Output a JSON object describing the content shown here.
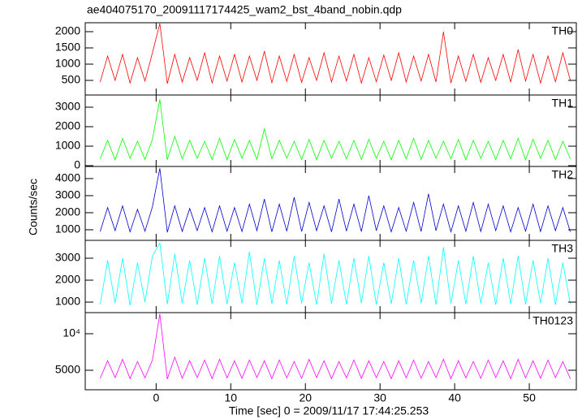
{
  "chart_data": {
    "type": "line",
    "title": "ae404075170_20091117174425_wam2_bst_4band_nobin.qdp",
    "xlabel": "Time [sec] 0 = 2009/11/17 17:44:25.253",
    "ylabel": "Counts/sec",
    "xlim": [
      -9.5,
      56.3
    ],
    "xticks": [
      0,
      10,
      20,
      30,
      40,
      50
    ],
    "x": [
      -7.5,
      -6.5,
      -5.5,
      -4.5,
      -3.5,
      -2.5,
      -1.5,
      -0.5,
      0.5,
      1.5,
      2.5,
      3.5,
      4.5,
      5.5,
      6.5,
      7.5,
      8.5,
      9.5,
      10.5,
      11.5,
      12.5,
      13.5,
      14.5,
      15.5,
      16.5,
      17.5,
      18.5,
      19.5,
      20.5,
      21.5,
      22.5,
      23.5,
      24.5,
      25.5,
      26.5,
      27.5,
      28.5,
      29.5,
      30.5,
      31.5,
      32.5,
      33.5,
      34.5,
      35.5,
      36.5,
      37.5,
      38.5,
      39.5,
      40.5,
      41.5,
      42.5,
      43.5,
      44.5,
      45.5,
      46.5,
      47.5,
      48.5,
      49.5,
      50.5,
      51.5,
      52.5,
      53.5,
      54.5,
      55.5
    ],
    "series": [
      {
        "name": "TH0",
        "color": "#ff0000",
        "ylim": [
          50,
          2275
        ],
        "yticks": [
          500,
          1000,
          1500,
          2000
        ],
        "values": [
          450,
          1250,
          500,
          1300,
          420,
          1200,
          480,
          1350,
          2250,
          400,
          1300,
          450,
          1200,
          500,
          1350,
          420,
          1250,
          480,
          1300,
          450,
          1250,
          500,
          1400,
          430,
          1250,
          470,
          1300,
          440,
          1200,
          500,
          1350,
          450,
          1250,
          480,
          1300,
          420,
          1200,
          460,
          1280,
          500,
          1350,
          450,
          1250,
          480,
          1300,
          450,
          2000,
          420,
          1250,
          470,
          1300,
          440,
          1200,
          500,
          1300,
          450,
          1450,
          480,
          1300,
          420,
          1250,
          460,
          1350,
          500
        ]
      },
      {
        "name": "TH1",
        "color": "#00ff00",
        "ylim": [
          -40,
          3625
        ],
        "yticks": [
          0,
          1000,
          2000,
          3000
        ],
        "values": [
          350,
          1300,
          300,
          1400,
          380,
          1250,
          320,
          1350,
          3400,
          300,
          1500,
          350,
          1300,
          380,
          1250,
          320,
          1400,
          300,
          1350,
          380,
          1300,
          320,
          1900,
          350,
          1300,
          380,
          1250,
          320,
          1350,
          300,
          1300,
          380,
          1250,
          350,
          1300,
          320,
          1350,
          380,
          1250,
          300,
          1300,
          350,
          1400,
          320,
          1300,
          380,
          1250,
          350,
          1350,
          300,
          1300,
          380,
          1250,
          320,
          1300,
          350,
          1400,
          300,
          1350,
          380,
          1300,
          320,
          1250,
          350
        ]
      },
      {
        "name": "TH2",
        "color": "#0000cc",
        "ylim": [
          380,
          4710
        ],
        "yticks": [
          1000,
          2000,
          3000,
          4000
        ],
        "values": [
          900,
          2300,
          950,
          2400,
          880,
          2200,
          920,
          2350,
          4600,
          850,
          2400,
          900,
          2250,
          950,
          2300,
          880,
          2400,
          920,
          2300,
          900,
          2500,
          950,
          2800,
          880,
          2500,
          920,
          2900,
          900,
          2600,
          950,
          2400,
          880,
          2800,
          920,
          2500,
          900,
          3000,
          950,
          2400,
          880,
          2300,
          920,
          2600,
          900,
          3100,
          950,
          2500,
          880,
          2400,
          920,
          2600,
          900,
          2500,
          950,
          2400,
          880,
          2300,
          920,
          2500,
          900,
          2400,
          950,
          2300,
          880
        ]
      },
      {
        "name": "TH3",
        "color": "#00ffff",
        "ylim": [
          520,
          3815
        ],
        "yticks": [
          1000,
          2000,
          3000
        ],
        "values": [
          900,
          2900,
          950,
          3000,
          850,
          2800,
          1000,
          3100,
          3700,
          900,
          3200,
          950,
          2900,
          880,
          3000,
          920,
          3100,
          900,
          2800,
          950,
          3300,
          880,
          3000,
          920,
          2900,
          900,
          3100,
          950,
          2800,
          880,
          3200,
          920,
          2900,
          900,
          3000,
          950,
          3100,
          880,
          2800,
          920,
          3000,
          900,
          2900,
          950,
          3100,
          880,
          3500,
          920,
          2900,
          900,
          3100,
          950,
          2800,
          880,
          3000,
          920,
          3100,
          900,
          2900,
          950,
          3000,
          880,
          2800,
          920
        ]
      },
      {
        "name": "TH0123",
        "color": "#ff00ff",
        "ylim": [
          2330,
          12890
        ],
        "yticks": [
          5000,
          {
            "value": 10000,
            "label": "10⁴"
          }
        ],
        "values": [
          3900,
          6300,
          4000,
          6500,
          3850,
          6200,
          3950,
          6400,
          12700,
          3800,
          6800,
          3900,
          6300,
          4000,
          6400,
          3850,
          6500,
          3950,
          6300,
          3900,
          6400,
          4000,
          6300,
          3850,
          6400,
          3950,
          6200,
          3900,
          6500,
          4000,
          6300,
          3850,
          6200,
          3950,
          6400,
          3900,
          6300,
          4000,
          6200,
          3850,
          6300,
          3950,
          6400,
          3900,
          6200,
          4000,
          6500,
          3850,
          6300,
          3950,
          6200,
          3900,
          6400,
          4000,
          6300,
          3850,
          6500,
          3950,
          6300,
          3900,
          6400,
          4000,
          6200,
          3850
        ]
      }
    ]
  }
}
